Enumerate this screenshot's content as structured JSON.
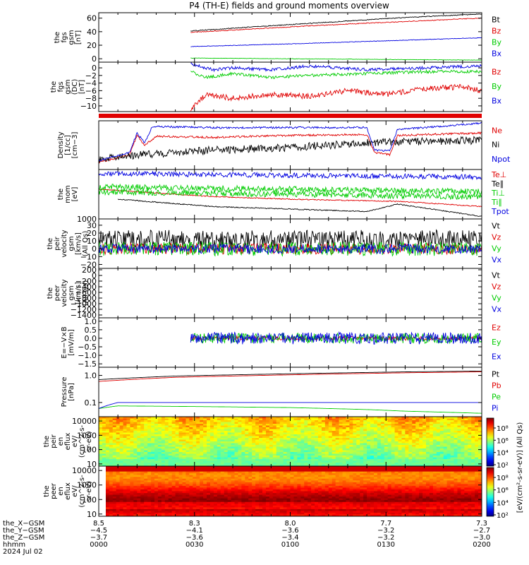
{
  "title": "P4 (TH-E) fields and ground moments overview",
  "colors": {
    "black": "#000000",
    "red": "#e00000",
    "green": "#00cc00",
    "blue": "#0000e0"
  },
  "chart_data": [
    {
      "id": "fgs-total",
      "type": "line",
      "ylabel": [
        "the",
        "fgs",
        "gsm",
        "[nT]"
      ],
      "ylim": [
        -5,
        68
      ],
      "yticks": [
        {
          "value": 0,
          "label": "0"
        },
        {
          "value": 20,
          "label": "20"
        },
        {
          "value": 40,
          "label": "40"
        },
        {
          "value": 60,
          "label": "60"
        }
      ],
      "series": [
        {
          "name": "Bt",
          "color": "#000000",
          "t0": 0.24,
          "start": 41,
          "end": 66,
          "noise": 0.6,
          "points": [
            [
              0.24,
              41
            ],
            [
              0.4,
              47
            ],
            [
              0.6,
              54
            ],
            [
              0.8,
              61
            ],
            [
              1.0,
              66
            ]
          ]
        },
        {
          "name": "Bz",
          "color": "#e00000",
          "t0": 0.24,
          "start": 39,
          "end": 60,
          "noise": 0.6,
          "points": [
            [
              0.24,
              39
            ],
            [
              0.4,
              44
            ],
            [
              0.6,
              50
            ],
            [
              0.8,
              55
            ],
            [
              1.0,
              60
            ]
          ]
        },
        {
          "name": "By",
          "color": "#00cc00",
          "t0": 0.24,
          "start": 1,
          "end": -2,
          "noise": 0.3,
          "points": [
            [
              0.24,
              1
            ],
            [
              0.5,
              0
            ],
            [
              1.0,
              -2
            ]
          ]
        },
        {
          "name": "Bx",
          "color": "#0000e0",
          "t0": 0.24,
          "start": 18,
          "end": 31,
          "noise": 0.4,
          "points": [
            [
              0.24,
              18
            ],
            [
              0.5,
              22
            ],
            [
              1.0,
              31
            ]
          ]
        }
      ]
    },
    {
      "id": "fgs-dsl",
      "type": "line",
      "ylabel": [
        "the",
        "fgs",
        "gsm",
        "(DC)",
        "[nT]"
      ],
      "ylim": [
        -11.5,
        1.5
      ],
      "yticks": [
        {
          "value": 0,
          "label": "0"
        },
        {
          "value": -2,
          "label": "−2"
        },
        {
          "value": -4,
          "label": "−4"
        },
        {
          "value": -6,
          "label": "−6"
        },
        {
          "value": -8,
          "label": "−8"
        },
        {
          "value": -10,
          "label": "−10"
        }
      ],
      "series": [
        {
          "name": "Bz",
          "color": "#e00000",
          "t0": 0.24,
          "noise": 0.7,
          "points": [
            [
              0.24,
              -11
            ],
            [
              0.28,
              -7
            ],
            [
              0.35,
              -8
            ],
            [
              0.45,
              -7
            ],
            [
              0.55,
              -7.5
            ],
            [
              0.65,
              -6
            ],
            [
              0.75,
              -7
            ],
            [
              0.85,
              -5.5
            ],
            [
              0.95,
              -5
            ],
            [
              1.0,
              -6
            ]
          ]
        },
        {
          "name": "By",
          "color": "#00cc00",
          "t0": 0.24,
          "noise": 0.4,
          "points": [
            [
              0.24,
              -1
            ],
            [
              0.28,
              -2.5
            ],
            [
              0.35,
              -1.5
            ],
            [
              0.45,
              -2.5
            ],
            [
              0.55,
              -2
            ],
            [
              0.7,
              -1.5
            ],
            [
              0.85,
              -1
            ],
            [
              1.0,
              -1
            ]
          ]
        },
        {
          "name": "Bx",
          "color": "#0000e0",
          "t0": 0.24,
          "noise": 0.4,
          "points": [
            [
              0.24,
              1
            ],
            [
              0.3,
              -0.5
            ],
            [
              0.35,
              0
            ],
            [
              0.45,
              -0.5
            ],
            [
              0.55,
              0.5
            ],
            [
              0.7,
              -0.5
            ],
            [
              0.85,
              0
            ],
            [
              1.0,
              0.5
            ]
          ]
        }
      ]
    },
    {
      "id": "density",
      "type": "line",
      "ylabel": [
        "Density",
        "[1/cc]",
        "[cm−3]"
      ],
      "ylim": [
        0,
        1
      ],
      "yticks": [],
      "series": [
        {
          "name": "Ne",
          "color": "#e00000",
          "t0": 0.0,
          "noise": 0.02,
          "points": [
            [
              0,
              0.15
            ],
            [
              0.08,
              0.3
            ],
            [
              0.1,
              0.7
            ],
            [
              0.12,
              0.5
            ],
            [
              0.15,
              0.68
            ],
            [
              0.3,
              0.66
            ],
            [
              0.5,
              0.7
            ],
            [
              0.7,
              0.72
            ],
            [
              0.72,
              0.35
            ],
            [
              0.76,
              0.3
            ],
            [
              0.78,
              0.7
            ],
            [
              1.0,
              0.75
            ]
          ]
        },
        {
          "name": "Ni",
          "color": "#000000",
          "t0": 0.0,
          "noise": 0.08,
          "points": [
            [
              0,
              0.2
            ],
            [
              0.1,
              0.3
            ],
            [
              0.3,
              0.4
            ],
            [
              0.5,
              0.45
            ],
            [
              0.7,
              0.55
            ],
            [
              1.0,
              0.6
            ]
          ]
        },
        {
          "name": "Npot",
          "color": "#0000e0",
          "t0": 0.0,
          "noise": 0.02,
          "points": [
            [
              0,
              0.18
            ],
            [
              0.08,
              0.35
            ],
            [
              0.1,
              0.75
            ],
            [
              0.12,
              0.55
            ],
            [
              0.14,
              0.88
            ],
            [
              0.3,
              0.86
            ],
            [
              0.5,
              0.86
            ],
            [
              0.7,
              0.86
            ],
            [
              0.72,
              0.4
            ],
            [
              0.76,
              0.38
            ],
            [
              0.78,
              0.82
            ],
            [
              1.0,
              0.95
            ]
          ]
        }
      ]
    },
    {
      "id": "temperature",
      "type": "line",
      "ylabel": [
        "the",
        "mom",
        "[eV]"
      ],
      "ylim": [
        0,
        1
      ],
      "yticks": [
        {
          "value": 0,
          "label": "1000"
        }
      ],
      "series": [
        {
          "name": "Te⊥",
          "color": "#e00000",
          "t0": 0.0,
          "noise": 0.01,
          "points": [
            [
              0,
              0.6
            ],
            [
              0.3,
              0.45
            ],
            [
              0.5,
              0.4
            ],
            [
              0.8,
              0.35
            ],
            [
              1.0,
              0.25
            ]
          ]
        },
        {
          "name": "Te∥",
          "color": "#000000",
          "t0": 0.05,
          "noise": 0.01,
          "points": [
            [
              0.05,
              0.4
            ],
            [
              0.3,
              0.25
            ],
            [
              0.5,
              0.2
            ],
            [
              0.7,
              0.15
            ],
            [
              0.78,
              0.3
            ],
            [
              1.0,
              0.05
            ]
          ]
        },
        {
          "name": "Ti⊥",
          "color": "#00cc00",
          "t0": 0.0,
          "noise": 0.06,
          "points": [
            [
              0,
              0.65
            ],
            [
              0.5,
              0.6
            ],
            [
              1.0,
              0.55
            ]
          ]
        },
        {
          "name": "Ti∥",
          "color": "#00cc00",
          "t0": 0.0,
          "noise": 0.06,
          "points": [
            [
              0,
              0.55
            ],
            [
              0.5,
              0.5
            ],
            [
              1.0,
              0.45
            ]
          ]
        },
        {
          "name": "Tpot",
          "color": "#0000e0",
          "t0": 0.0,
          "noise": 0.05,
          "points": [
            [
              0,
              0.92
            ],
            [
              0.5,
              0.88
            ],
            [
              1.0,
              0.85
            ]
          ]
        }
      ]
    },
    {
      "id": "velocity-peir",
      "type": "line",
      "ylabel": [
        "the",
        "peir",
        "velocity",
        "gsm",
        "[km/s]",
        "(All Qs)"
      ],
      "ylim": [
        -25,
        38
      ],
      "yticks": [
        {
          "value": 30,
          "label": "30"
        },
        {
          "value": 20,
          "label": "20"
        },
        {
          "value": 10,
          "label": "10"
        },
        {
          "value": 0,
          "label": "0"
        },
        {
          "value": -10,
          "label": "−10"
        },
        {
          "value": -20,
          "label": "−20"
        }
      ],
      "series": [
        {
          "name": "Vt",
          "color": "#000000",
          "t0": 0.0,
          "noise": 12,
          "points": [
            [
              0,
              12
            ],
            [
              1.0,
              12
            ]
          ]
        },
        {
          "name": "Vz",
          "color": "#e00000",
          "t0": 0.0,
          "noise": 7,
          "points": [
            [
              0,
              0
            ],
            [
              1.0,
              0
            ]
          ]
        },
        {
          "name": "Vy",
          "color": "#00cc00",
          "t0": 0.0,
          "noise": 9,
          "points": [
            [
              0,
              0
            ],
            [
              1.0,
              0
            ]
          ]
        },
        {
          "name": "Vx",
          "color": "#0000e0",
          "t0": 0.0,
          "noise": 6,
          "points": [
            [
              0,
              0
            ],
            [
              1.0,
              0
            ]
          ]
        }
      ]
    },
    {
      "id": "velocity-peer",
      "type": "line",
      "ylabel": [
        "the",
        "peer",
        "velocity",
        "gsm",
        "[km/s]",
        "(All Qs)"
      ],
      "ylim": [
        -1500,
        250
      ],
      "yticks": [
        {
          "value": 200,
          "label": "200"
        },
        {
          "value": 0,
          "label": "0"
        },
        {
          "value": -200,
          "label": "−200"
        },
        {
          "value": -400,
          "label": "−400"
        },
        {
          "value": -600,
          "label": "−600"
        },
        {
          "value": -800,
          "label": "−800"
        },
        {
          "value": -1000,
          "label": "−1000"
        },
        {
          "value": -1200,
          "label": "−1200"
        },
        {
          "value": -1400,
          "label": "−1400"
        }
      ],
      "series": [
        {
          "name": "Vt",
          "color": "#000000",
          "points": []
        },
        {
          "name": "Vz",
          "color": "#e00000",
          "points": []
        },
        {
          "name": "Vy",
          "color": "#00cc00",
          "points": []
        },
        {
          "name": "Vx",
          "color": "#0000e0",
          "points": []
        }
      ]
    },
    {
      "id": "efield",
      "type": "line",
      "ylabel": [
        "E=−V×B",
        "[mV/m]"
      ],
      "ylim": [
        -1.7,
        1.2
      ],
      "yticks": [
        {
          "value": 1.0,
          "label": "1.0"
        },
        {
          "value": 0.5,
          "label": "0.5"
        },
        {
          "value": 0.0,
          "label": "0.0"
        },
        {
          "value": -0.5,
          "label": "−0.5"
        },
        {
          "value": -1.0,
          "label": "−1.0"
        },
        {
          "value": -1.5,
          "label": "−1.5"
        }
      ],
      "series": [
        {
          "name": "Ez",
          "color": "#e00000",
          "t0": 0.24,
          "noise": 0.12,
          "points": [
            [
              0.24,
              0
            ],
            [
              1.0,
              0
            ]
          ]
        },
        {
          "name": "Ey",
          "color": "#00cc00",
          "t0": 0.24,
          "noise": 0.3,
          "points": [
            [
              0.24,
              0
            ],
            [
              1.0,
              0
            ]
          ]
        },
        {
          "name": "Ex",
          "color": "#0000e0",
          "t0": 0.24,
          "noise": 0.35,
          "points": [
            [
              0.24,
              0
            ],
            [
              1.0,
              0
            ]
          ]
        }
      ]
    },
    {
      "id": "pressure",
      "type": "line",
      "ylabel": [
        "Pressure",
        "[nPa]"
      ],
      "ylim": [
        0.03,
        2.0
      ],
      "yscale": "log",
      "yticks": [
        {
          "value": 1.0,
          "label": "1.0"
        },
        {
          "value": 0.1,
          "label": "0.1"
        }
      ],
      "series": [
        {
          "name": "Pt",
          "color": "#000000",
          "t0": 0.0,
          "noise": 0.0,
          "points": [
            [
              0,
              0.7
            ],
            [
              0.2,
              0.95
            ],
            [
              0.5,
              1.15
            ],
            [
              0.8,
              1.35
            ],
            [
              1.0,
              1.45
            ]
          ]
        },
        {
          "name": "Pb",
          "color": "#e00000",
          "t0": 0.0,
          "noise": 0.0,
          "points": [
            [
              0,
              0.6
            ],
            [
              0.2,
              0.85
            ],
            [
              0.5,
              1.05
            ],
            [
              0.8,
              1.25
            ],
            [
              1.0,
              1.35
            ]
          ]
        },
        {
          "name": "Pe",
          "color": "#00cc00",
          "t0": 0.0,
          "noise": 0.0,
          "points": [
            [
              0,
              0.06
            ],
            [
              0.05,
              0.075
            ],
            [
              0.3,
              0.07
            ],
            [
              0.5,
              0.065
            ],
            [
              0.7,
              0.055
            ],
            [
              0.8,
              0.048
            ],
            [
              1.0,
              0.04
            ]
          ]
        },
        {
          "name": "Pi",
          "color": "#0000e0",
          "t0": 0.0,
          "noise": 0.0,
          "points": [
            [
              0,
              0.06
            ],
            [
              0.05,
              0.1
            ],
            [
              0.5,
              0.1
            ],
            [
              1.0,
              0.1
            ]
          ]
        }
      ]
    },
    {
      "id": "peir-eflux",
      "type": "heatmap",
      "ylabel": [
        "the",
        "peir",
        "en",
        "eflux",
        "eV/",
        "(cm^2-s-",
        "sr-eV)"
      ],
      "yscale": "log",
      "ylim": [
        7,
        20000
      ],
      "yticks": [
        {
          "value": 10000,
          "label": "10000"
        },
        {
          "value": 1000,
          "label": "1000"
        },
        {
          "value": 100,
          "label": "100"
        },
        {
          "value": 10,
          "label": "10"
        }
      ]
    },
    {
      "id": "peer-eflux",
      "type": "heatmap",
      "ylabel": [
        "the",
        "peer",
        "en",
        "eflux",
        "eV/",
        "(cm^2-s-",
        "sr-eV)"
      ],
      "yscale": "log",
      "ylim": [
        7,
        20000
      ],
      "yticks": [
        {
          "value": 10000,
          "label": "10000"
        },
        {
          "value": 1000,
          "label": "1000"
        },
        {
          "value": 100,
          "label": "100"
        },
        {
          "value": 10,
          "label": "10"
        }
      ]
    }
  ],
  "colorbars": [
    {
      "id": "peir-colorbar",
      "ticks": [
        "10⁸",
        "10⁶",
        "10⁴",
        "10²"
      ]
    },
    {
      "id": "peer-colorbar",
      "ticks": [
        "10⁸",
        "10⁶",
        "10⁴",
        "10²"
      ]
    }
  ],
  "colorbar_label": "[eV/(cm²-s-sr-eV)] (All Qs)",
  "xaxis": {
    "row_labels": [
      "the_X−GSM",
      "the_Y−GSM",
      "the_Z−GSM",
      "hhmm",
      "2024 Jul 02"
    ],
    "ticks": [
      {
        "t": 0.0,
        "values": [
          "8.5",
          "−4.5",
          "−3.7",
          "0000"
        ]
      },
      {
        "t": 0.25,
        "values": [
          "8.3",
          "−4.1",
          "−3.6",
          "0030"
        ]
      },
      {
        "t": 0.5,
        "values": [
          "8.0",
          "−3.6",
          "−3.4",
          "0100"
        ]
      },
      {
        "t": 0.75,
        "values": [
          "7.7",
          "−3.2",
          "−3.2",
          "0130"
        ]
      },
      {
        "t": 1.0,
        "values": [
          "7.3",
          "−2.7",
          "−3.0",
          "0200"
        ]
      }
    ]
  }
}
